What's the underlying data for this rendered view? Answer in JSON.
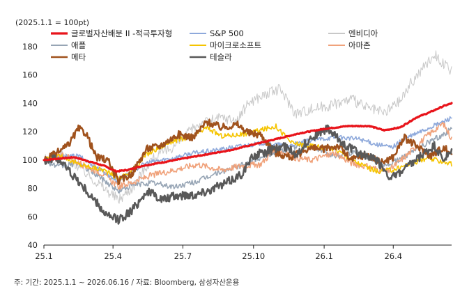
{
  "chart_data": {
    "type": "line",
    "unit_note": "(2025.1.1 = 100pt)",
    "source_note": "주: 기간: 2025.1.1 ~ 2026.06.16 / 자료: Bloomberg, 삼성자산운용",
    "x_range": [
      "2025-01-01",
      "2026-06-16"
    ],
    "x_ticks": [
      {
        "label": "25.1",
        "date": "2025-01-01"
      },
      {
        "label": "25.4",
        "date": "2025-04-01"
      },
      {
        "label": "25.7",
        "date": "2025-07-01"
      },
      {
        "label": "25.10",
        "date": "2025-10-01"
      },
      {
        "label": "26.1",
        "date": "2026-01-01"
      },
      {
        "label": "26.4",
        "date": "2026-04-01"
      }
    ],
    "ylim": [
      40,
      180
    ],
    "y_ticks": [
      40,
      60,
      80,
      100,
      120,
      140,
      160,
      180
    ],
    "grid": false,
    "legend_position": "top",
    "series": [
      {
        "name": "글로벌자산배분 II -적극투자형",
        "color": "#e8141b",
        "points": [
          [
            "2025-01-01",
            100
          ],
          [
            "2025-01-20",
            101
          ],
          [
            "2025-02-10",
            102
          ],
          [
            "2025-03-01",
            99
          ],
          [
            "2025-03-20",
            96
          ],
          [
            "2025-04-05",
            92
          ],
          [
            "2025-04-20",
            93
          ],
          [
            "2025-05-10",
            96
          ],
          [
            "2025-06-01",
            98
          ],
          [
            "2025-07-01",
            101
          ],
          [
            "2025-08-01",
            104
          ],
          [
            "2025-09-01",
            107
          ],
          [
            "2025-10-01",
            111
          ],
          [
            "2025-11-01",
            115
          ],
          [
            "2025-12-01",
            119
          ],
          [
            "2026-01-01",
            122
          ],
          [
            "2026-02-01",
            124
          ],
          [
            "2026-03-01",
            124
          ],
          [
            "2026-03-20",
            121
          ],
          [
            "2026-04-10",
            123
          ],
          [
            "2026-05-01",
            130
          ],
          [
            "2026-05-20",
            134
          ],
          [
            "2026-06-05",
            138
          ],
          [
            "2026-06-16",
            140
          ]
        ]
      },
      {
        "name": "S&P 500",
        "color": "#8ea9db",
        "points": [
          [
            "2025-01-01",
            100
          ],
          [
            "2025-01-20",
            102
          ],
          [
            "2025-02-15",
            103
          ],
          [
            "2025-03-10",
            95
          ],
          [
            "2025-04-08",
            85
          ],
          [
            "2025-04-25",
            92
          ],
          [
            "2025-05-15",
            98
          ],
          [
            "2025-06-15",
            101
          ],
          [
            "2025-07-15",
            105
          ],
          [
            "2025-08-15",
            107
          ],
          [
            "2025-09-15",
            110
          ],
          [
            "2025-10-15",
            112
          ],
          [
            "2025-11-15",
            110
          ],
          [
            "2025-12-15",
            114
          ],
          [
            "2026-01-15",
            116
          ],
          [
            "2026-02-15",
            115
          ],
          [
            "2026-03-10",
            111
          ],
          [
            "2026-03-30",
            109
          ],
          [
            "2026-04-20",
            116
          ],
          [
            "2026-05-15",
            122
          ],
          [
            "2026-06-05",
            127
          ],
          [
            "2026-06-16",
            130
          ]
        ]
      },
      {
        "name": "엔비디아",
        "color": "#c8c8c8",
        "points": [
          [
            "2025-01-01",
            100
          ],
          [
            "2025-01-25",
            104
          ],
          [
            "2025-02-10",
            98
          ],
          [
            "2025-03-10",
            85
          ],
          [
            "2025-04-08",
            72
          ],
          [
            "2025-04-25",
            80
          ],
          [
            "2025-05-20",
            100
          ],
          [
            "2025-06-20",
            110
          ],
          [
            "2025-07-20",
            125
          ],
          [
            "2025-08-20",
            130
          ],
          [
            "2025-09-10",
            128
          ],
          [
            "2025-09-25",
            141
          ],
          [
            "2025-10-15",
            146
          ],
          [
            "2025-11-05",
            150
          ],
          [
            "2025-11-25",
            133
          ],
          [
            "2025-12-15",
            136
          ],
          [
            "2026-01-10",
            139
          ],
          [
            "2026-02-05",
            143
          ],
          [
            "2026-02-25",
            137
          ],
          [
            "2026-03-20",
            133
          ],
          [
            "2026-04-10",
            142
          ],
          [
            "2026-04-25",
            155
          ],
          [
            "2026-05-10",
            165
          ],
          [
            "2026-05-25",
            175
          ],
          [
            "2026-06-05",
            168
          ],
          [
            "2026-06-16",
            162
          ]
        ]
      },
      {
        "name": "애플",
        "color": "#97a5b5",
        "points": [
          [
            "2025-01-01",
            100
          ],
          [
            "2025-01-20",
            95
          ],
          [
            "2025-02-15",
            98
          ],
          [
            "2025-03-15",
            88
          ],
          [
            "2025-04-08",
            78
          ],
          [
            "2025-04-25",
            82
          ],
          [
            "2025-05-20",
            84
          ],
          [
            "2025-06-20",
            81
          ],
          [
            "2025-07-20",
            85
          ],
          [
            "2025-08-15",
            91
          ],
          [
            "2025-09-15",
            96
          ],
          [
            "2025-10-15",
            103
          ],
          [
            "2025-11-15",
            108
          ],
          [
            "2025-12-10",
            111
          ],
          [
            "2026-01-15",
            103
          ],
          [
            "2026-02-10",
            106
          ],
          [
            "2026-03-01",
            101
          ],
          [
            "2026-03-25",
            96
          ],
          [
            "2026-04-20",
            104
          ],
          [
            "2026-05-15",
            112
          ],
          [
            "2026-06-05",
            118
          ],
          [
            "2026-06-16",
            122
          ]
        ]
      },
      {
        "name": "마이크로소프트",
        "color": "#f5c400",
        "points": [
          [
            "2025-01-01",
            100
          ],
          [
            "2025-01-25",
            103
          ],
          [
            "2025-02-15",
            97
          ],
          [
            "2025-03-20",
            93
          ],
          [
            "2025-04-08",
            87
          ],
          [
            "2025-04-25",
            92
          ],
          [
            "2025-05-15",
            104
          ],
          [
            "2025-06-15",
            113
          ],
          [
            "2025-07-15",
            117
          ],
          [
            "2025-08-01",
            123
          ],
          [
            "2025-08-20",
            117
          ],
          [
            "2025-09-15",
            118
          ],
          [
            "2025-10-10",
            121
          ],
          [
            "2025-10-30",
            124
          ],
          [
            "2025-11-20",
            112
          ],
          [
            "2025-12-15",
            110
          ],
          [
            "2026-01-15",
            108
          ],
          [
            "2026-02-10",
            99
          ],
          [
            "2026-03-10",
            92
          ],
          [
            "2026-04-01",
            93
          ],
          [
            "2026-04-25",
            98
          ],
          [
            "2026-05-15",
            101
          ],
          [
            "2026-06-05",
            99
          ],
          [
            "2026-06-16",
            97
          ]
        ]
      },
      {
        "name": "아마존",
        "color": "#f0a27b",
        "points": [
          [
            "2025-01-01",
            100
          ],
          [
            "2025-01-25",
            104
          ],
          [
            "2025-02-15",
            98
          ],
          [
            "2025-03-20",
            90
          ],
          [
            "2025-04-08",
            81
          ],
          [
            "2025-04-25",
            84
          ],
          [
            "2025-05-20",
            89
          ],
          [
            "2025-06-20",
            93
          ],
          [
            "2025-07-20",
            97
          ],
          [
            "2025-08-20",
            93
          ],
          [
            "2025-09-15",
            96
          ],
          [
            "2025-10-10",
            97
          ],
          [
            "2025-10-30",
            108
          ],
          [
            "2025-11-20",
            102
          ],
          [
            "2025-12-15",
            100
          ],
          [
            "2026-01-15",
            105
          ],
          [
            "2026-02-05",
            98
          ],
          [
            "2026-03-01",
            95
          ],
          [
            "2026-03-25",
            92
          ],
          [
            "2026-04-20",
            104
          ],
          [
            "2026-05-15",
            117
          ],
          [
            "2026-06-05",
            126
          ],
          [
            "2026-06-16",
            115
          ]
        ]
      },
      {
        "name": "메타",
        "color": "#a0521d",
        "points": [
          [
            "2025-01-01",
            100
          ],
          [
            "2025-01-15",
            104
          ],
          [
            "2025-02-01",
            110
          ],
          [
            "2025-02-15",
            122
          ],
          [
            "2025-02-25",
            119
          ],
          [
            "2025-03-10",
            102
          ],
          [
            "2025-03-25",
            100
          ],
          [
            "2025-04-08",
            85
          ],
          [
            "2025-04-25",
            90
          ],
          [
            "2025-05-15",
            108
          ],
          [
            "2025-06-01",
            110
          ],
          [
            "2025-06-25",
            118
          ],
          [
            "2025-07-15",
            116
          ],
          [
            "2025-08-01",
            127
          ],
          [
            "2025-08-20",
            123
          ],
          [
            "2025-09-10",
            125
          ],
          [
            "2025-09-25",
            119
          ],
          [
            "2025-10-10",
            118
          ],
          [
            "2025-10-30",
            105
          ],
          [
            "2025-11-20",
            102
          ],
          [
            "2025-12-10",
            108
          ],
          [
            "2026-01-01",
            108
          ],
          [
            "2026-01-20",
            110
          ],
          [
            "2026-02-05",
            100
          ],
          [
            "2026-02-25",
            104
          ],
          [
            "2026-03-15",
            98
          ],
          [
            "2026-04-01",
            102
          ],
          [
            "2026-04-15",
            116
          ],
          [
            "2026-05-01",
            110
          ],
          [
            "2026-05-20",
            103
          ],
          [
            "2026-06-05",
            109
          ],
          [
            "2026-06-16",
            105
          ]
        ]
      },
      {
        "name": "테슬라",
        "color": "#595959",
        "points": [
          [
            "2025-01-01",
            100
          ],
          [
            "2025-01-20",
            101
          ],
          [
            "2025-02-10",
            88
          ],
          [
            "2025-03-10",
            70
          ],
          [
            "2025-03-25",
            60
          ],
          [
            "2025-04-08",
            58
          ],
          [
            "2025-04-25",
            64
          ],
          [
            "2025-05-15",
            78
          ],
          [
            "2025-06-05",
            72
          ],
          [
            "2025-06-25",
            75
          ],
          [
            "2025-07-20",
            76
          ],
          [
            "2025-08-20",
            82
          ],
          [
            "2025-09-15",
            90
          ],
          [
            "2025-10-01",
            103
          ],
          [
            "2025-10-20",
            106
          ],
          [
            "2025-11-10",
            110
          ],
          [
            "2025-11-25",
            104
          ],
          [
            "2025-12-15",
            116
          ],
          [
            "2026-01-05",
            122
          ],
          [
            "2026-01-25",
            112
          ],
          [
            "2026-02-15",
            105
          ],
          [
            "2026-03-10",
            100
          ],
          [
            "2026-03-30",
            87
          ],
          [
            "2026-04-20",
            95
          ],
          [
            "2026-05-10",
            104
          ],
          [
            "2026-05-25",
            110
          ],
          [
            "2026-06-05",
            100
          ],
          [
            "2026-06-16",
            105
          ]
        ]
      }
    ]
  }
}
